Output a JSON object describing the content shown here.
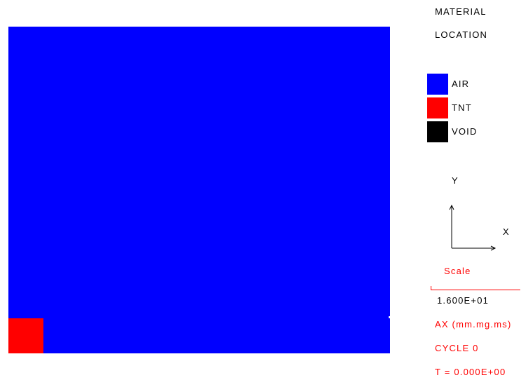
{
  "header": {
    "title_line1": "MATERIAL",
    "title_line2": "LOCATION"
  },
  "legend": [
    {
      "label": "AIR",
      "color": "#0000ff"
    },
    {
      "label": "TNT",
      "color": "#ff0000"
    },
    {
      "label": "VOID",
      "color": "#000000"
    }
  ],
  "axes": {
    "x_label": "X",
    "y_label": "Y"
  },
  "scale": {
    "label": "Scale",
    "value": "1.600E+01"
  },
  "info": {
    "units": "AX (mm.mg.ms)",
    "cycle": "CYCLE 0",
    "time": "T = 0.000E+00"
  },
  "colors": {
    "air": "#0000ff",
    "tnt": "#ff0000",
    "void": "#000000",
    "annotation": "#ff0000"
  }
}
